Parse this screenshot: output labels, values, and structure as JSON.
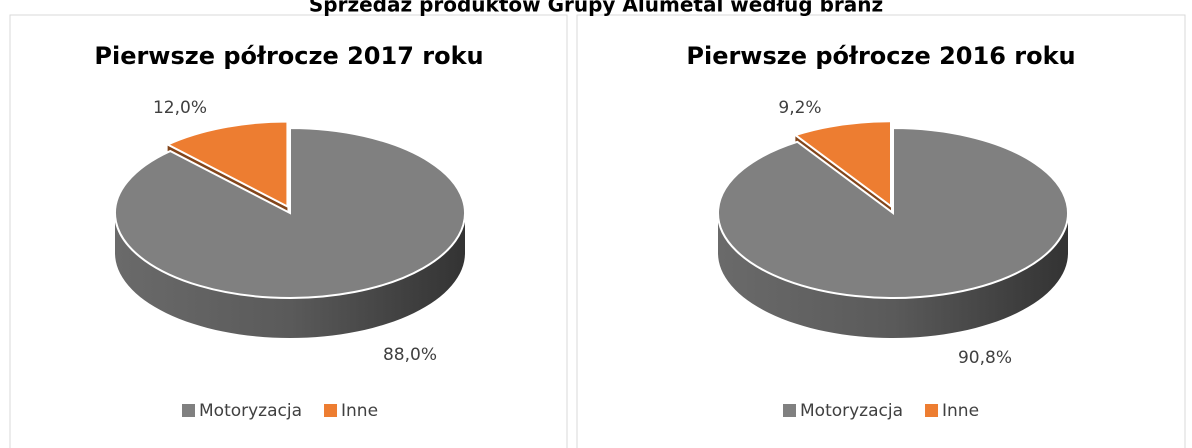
{
  "title": "Sprzedaż produktów Grupy Alumetal według branż",
  "chart_data": [
    {
      "type": "pie",
      "title": "Pierwsze półrocze 2017 roku",
      "categories": [
        "Motoryzacja",
        "Inne"
      ],
      "values": [
        88.0,
        12.0
      ],
      "value_labels": [
        "88,0%",
        "12,0%"
      ],
      "colors": [
        "#808080",
        "#ed7d31"
      ],
      "legend": "bottom"
    },
    {
      "type": "pie",
      "title": "Pierwsze półrocze 2016 roku",
      "categories": [
        "Motoryzacja",
        "Inne"
      ],
      "values": [
        90.8,
        9.2
      ],
      "value_labels": [
        "90,8%",
        "9,2%"
      ],
      "colors": [
        "#808080",
        "#ed7d31"
      ],
      "legend": "bottom"
    }
  ]
}
